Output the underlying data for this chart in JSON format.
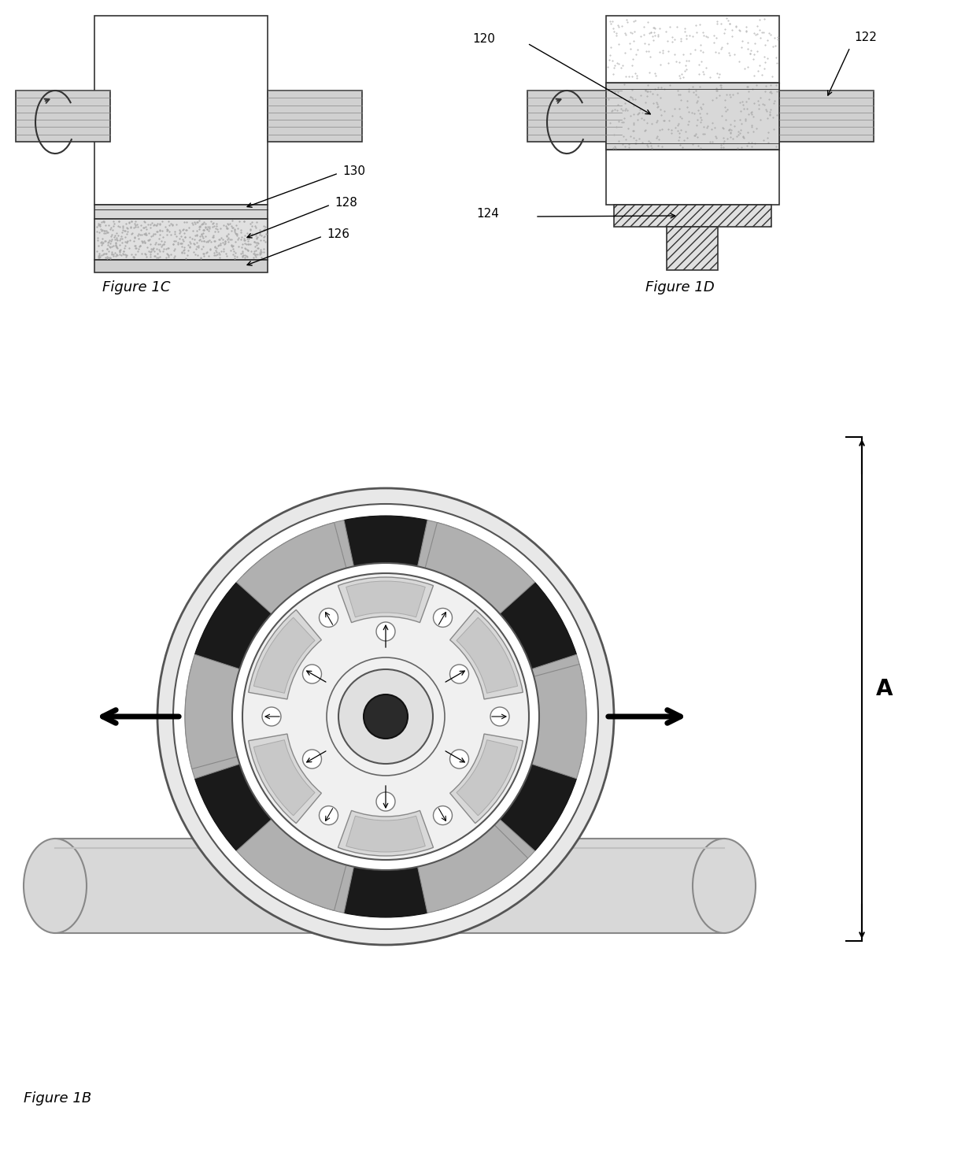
{
  "bg_color": "#ffffff",
  "fig_width": 12.4,
  "fig_height": 14.77,
  "label_120": "120",
  "label_122": "122",
  "label_124": "124",
  "label_126": "126",
  "label_128": "128",
  "label_130": "130",
  "fig1c_label": "Figure 1C",
  "fig1d_label": "Figure 1D",
  "fig1b_label": "Figure 1B",
  "label_A": "A",
  "ec_main": "#333333",
  "fc_white": "#ffffff",
  "fc_light_gray": "#e8e8e8",
  "fc_med_gray": "#cccccc",
  "fc_dark_gray": "#888888",
  "fc_very_dark": "#222222",
  "fc_track": "#d4d4d4"
}
